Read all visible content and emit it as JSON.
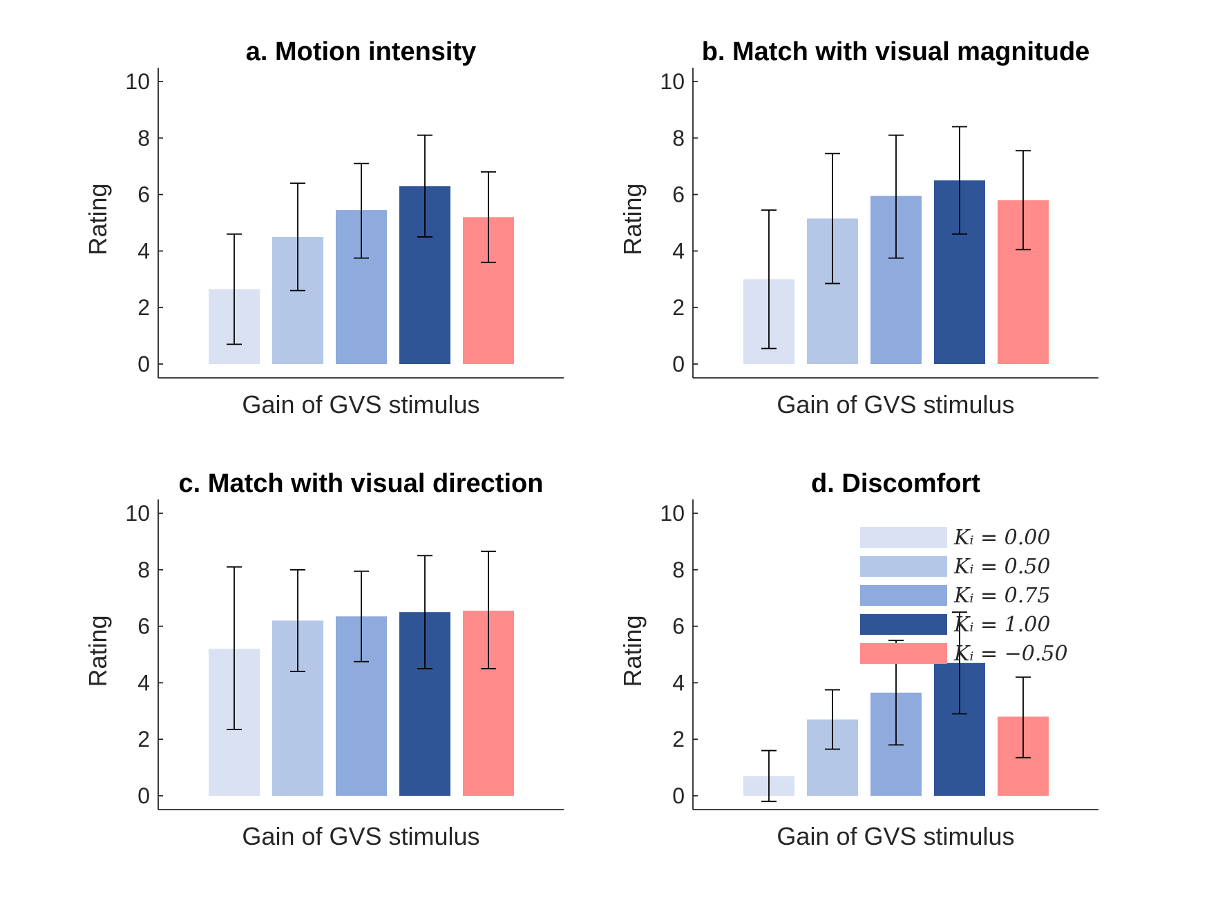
{
  "chart_data": [
    {
      "type": "bar",
      "title": "a. Motion intensity",
      "xlabel": "Gain of GVS stimulus",
      "ylabel": "Rating",
      "ylim": [
        0,
        10
      ],
      "yticks": [
        0,
        2,
        4,
        6,
        8,
        10
      ],
      "categories": [
        "K_i = 0.00",
        "K_i = 0.50",
        "K_i = 0.75",
        "K_i = 1.00",
        "K_i = -0.50"
      ],
      "values": [
        2.65,
        4.5,
        5.45,
        6.3,
        5.2
      ],
      "error_low": [
        0.7,
        2.6,
        3.75,
        4.5,
        3.6
      ],
      "error_high": [
        4.6,
        6.4,
        7.1,
        8.1,
        6.8
      ]
    },
    {
      "type": "bar",
      "title": "b. Match with visual magnitude",
      "xlabel": "Gain of GVS stimulus",
      "ylabel": "Rating",
      "ylim": [
        0,
        10
      ],
      "yticks": [
        0,
        2,
        4,
        6,
        8,
        10
      ],
      "categories": [
        "K_i = 0.00",
        "K_i = 0.50",
        "K_i = 0.75",
        "K_i = 1.00",
        "K_i = -0.50"
      ],
      "values": [
        3.0,
        5.15,
        5.95,
        6.5,
        5.8
      ],
      "error_low": [
        0.55,
        2.85,
        3.75,
        4.6,
        4.05
      ],
      "error_high": [
        5.45,
        7.45,
        8.1,
        8.4,
        7.55
      ]
    },
    {
      "type": "bar",
      "title": "c. Match with visual direction",
      "xlabel": "Gain of GVS stimulus",
      "ylabel": "Rating",
      "ylim": [
        0,
        10
      ],
      "yticks": [
        0,
        2,
        4,
        6,
        8,
        10
      ],
      "categories": [
        "K_i = 0.00",
        "K_i = 0.50",
        "K_i = 0.75",
        "K_i = 1.00",
        "K_i = -0.50"
      ],
      "values": [
        5.2,
        6.2,
        6.35,
        6.5,
        6.55
      ],
      "error_low": [
        2.35,
        4.4,
        4.75,
        4.5,
        4.5
      ],
      "error_high": [
        8.1,
        8.0,
        7.95,
        8.5,
        8.65
      ]
    },
    {
      "type": "bar",
      "title": "d. Discomfort",
      "xlabel": "Gain of GVS stimulus",
      "ylabel": "Rating",
      "ylim": [
        0,
        10
      ],
      "yticks": [
        0,
        2,
        4,
        6,
        8,
        10
      ],
      "categories": [
        "K_i = 0.00",
        "K_i = 0.50",
        "K_i = 0.75",
        "K_i = 1.00",
        "K_i = -0.50"
      ],
      "values": [
        0.7,
        2.7,
        3.65,
        4.7,
        2.8
      ],
      "error_low": [
        -0.2,
        1.65,
        1.8,
        2.9,
        1.35
      ],
      "error_high": [
        1.6,
        3.75,
        5.5,
        6.5,
        4.2
      ],
      "legend": {
        "placement": "top-right",
        "entries": [
          "K_i = 0.00",
          "K_i = 0.50",
          "K_i = 0.75",
          "K_i = 1.00",
          "K_i = -0.50"
        ]
      }
    }
  ],
  "colors": {
    "bars": [
      "#d9e1f2",
      "#b4c7e7",
      "#8faadc",
      "#2f5597",
      "#ff8b8b"
    ],
    "axis": "#262626",
    "errorbar": "#000000"
  }
}
